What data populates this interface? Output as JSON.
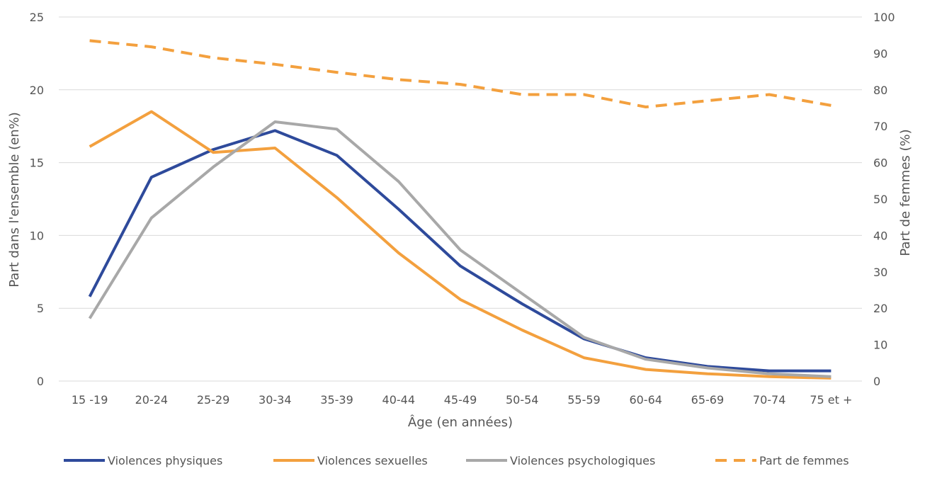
{
  "chart_data": {
    "type": "line",
    "xlabel": "Âge (en années)",
    "ylabel": "Part dans l'ensemble (en%)",
    "y2label": "Part de femmes (%)",
    "categories": [
      "15 -19",
      "20-24",
      "25-29",
      "30-34",
      "35-39",
      "40-44",
      "45-49",
      "50-54",
      "55-59",
      "60-64",
      "65-69",
      "70-74",
      "75 et +"
    ],
    "ylim": [
      0,
      25
    ],
    "yticks": [
      "0",
      "5",
      "10",
      "15",
      "20",
      "25"
    ],
    "y2lim": [
      0,
      100
    ],
    "y2ticks": [
      "0",
      "10",
      "20",
      "30",
      "40",
      "50",
      "60",
      "70",
      "80",
      "90",
      "100"
    ],
    "grid": true,
    "legend_position": "bottom",
    "series": [
      {
        "name": "Violences physiques",
        "axis": "left",
        "color": "#2e4a9b",
        "dash": "solid",
        "values": [
          5.8,
          14.0,
          15.9,
          17.2,
          15.5,
          11.8,
          7.9,
          5.3,
          2.9,
          1.6,
          1.0,
          0.7,
          0.7
        ]
      },
      {
        "name": "Violences sexuelles",
        "axis": "left",
        "color": "#f3a03e",
        "dash": "solid",
        "values": [
          16.1,
          18.5,
          15.7,
          16.0,
          12.6,
          8.8,
          5.6,
          3.5,
          1.6,
          0.8,
          0.5,
          0.3,
          0.2
        ]
      },
      {
        "name": "Violences psychologiques",
        "axis": "left",
        "color": "#a8a8a8",
        "dash": "solid",
        "values": [
          4.3,
          11.2,
          14.7,
          17.8,
          17.3,
          13.7,
          9.0,
          6.0,
          3.0,
          1.5,
          0.9,
          0.5,
          0.3
        ]
      },
      {
        "name": "Part de femmes",
        "axis": "right",
        "color": "#f3a03e",
        "dash": "dashed",
        "values": [
          93.5,
          91.8,
          88.8,
          87.0,
          84.8,
          82.8,
          81.5,
          78.7,
          78.7,
          75.3,
          77.0,
          78.7,
          75.7
        ]
      }
    ]
  }
}
